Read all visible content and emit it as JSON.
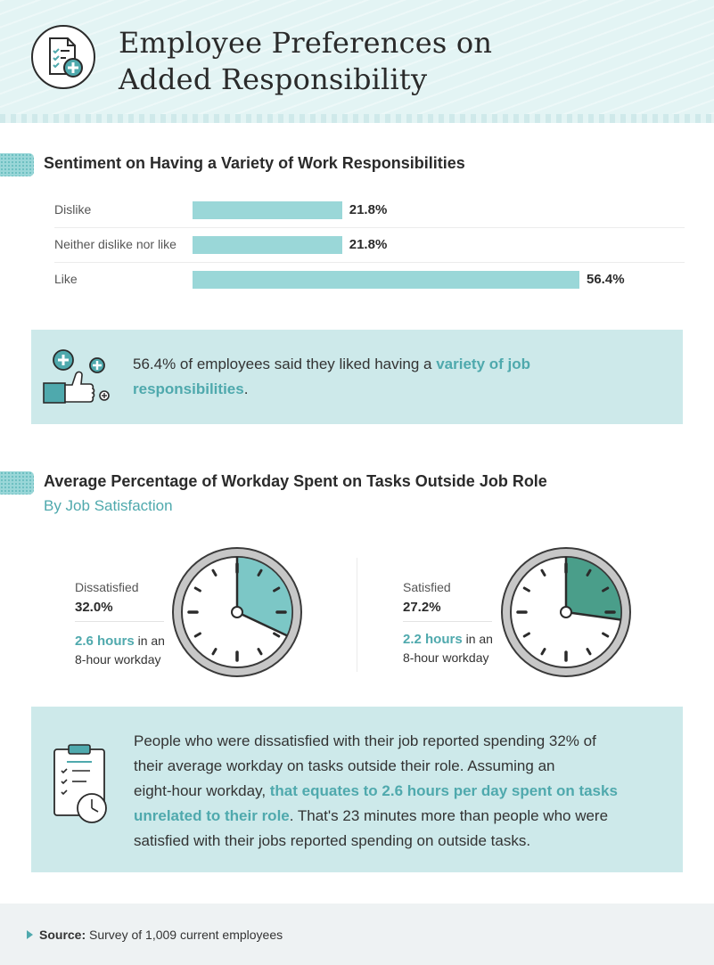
{
  "header": {
    "title_line1": "Employee Preferences on",
    "title_line2": "Added Responsibility",
    "icon": "checklist-plus-icon"
  },
  "section1": {
    "title": "Sentiment on Having a Variety of Work Responsibilities"
  },
  "callout1": {
    "icon": "thumbs-up-plus-icon",
    "text_before": "56.4% of employees said they liked having a ",
    "highlight_line1": "variety of job",
    "highlight_line2": "responsibilities",
    "text_after": "."
  },
  "section2": {
    "title": "Average Percentage of Workday Spent on Tasks Outside Job Role",
    "subtitle": "By Job Satisfaction"
  },
  "callout2": {
    "icon": "clipboard-clock-icon",
    "line1": "People who were dissatisfied with their job reported spending 32% of",
    "line2": "their average workday on tasks outside their role. Assuming an",
    "line3_before": "eight-hour workday, ",
    "line3_highlight": "that equates to 2.6 hours per day spent on tasks",
    "line4_highlight": "unrelated to their role",
    "line4_after": ". That's 23 minutes more than people who were",
    "line5": "satisfied with their jobs reported spending on outside tasks."
  },
  "footer": {
    "source_label": "Source:",
    "source_text": " Survey of 1,009 current employees"
  },
  "colors": {
    "bar": "#9ad7d8",
    "accent": "#4fa9ad",
    "clock_light": "#7cc7c6",
    "clock_dark": "#4a9e8a",
    "callout_bg": "#cde9ea",
    "header_bg": "#e3f4f4"
  },
  "chart_data": [
    {
      "type": "bar",
      "orientation": "horizontal",
      "title": "Sentiment on Having a Variety of Work Responsibilities",
      "categories": [
        "Dislike",
        "Neither dislike nor like",
        "Like"
      ],
      "values": [
        21.8,
        21.8,
        56.4
      ],
      "value_labels": [
        "21.8%",
        "21.8%",
        "56.4%"
      ],
      "unit": "%",
      "grid": false,
      "legend": "none"
    },
    {
      "type": "pie",
      "title": "Average Percentage of Workday Spent on Tasks Outside Job Role",
      "subtitle": "By Job Satisfaction",
      "items": [
        {
          "label": "Dissatisfied",
          "value": 32.0,
          "value_label": "32.0%",
          "hours": "2.6 hours",
          "hours_suffix": " in an",
          "workday": "8-hour workday"
        },
        {
          "label": "Satisfied",
          "value": 27.2,
          "value_label": "27.2%",
          "hours": "2.2 hours",
          "hours_suffix": " in an",
          "workday": "8-hour workday"
        }
      ],
      "legend": "none"
    }
  ]
}
